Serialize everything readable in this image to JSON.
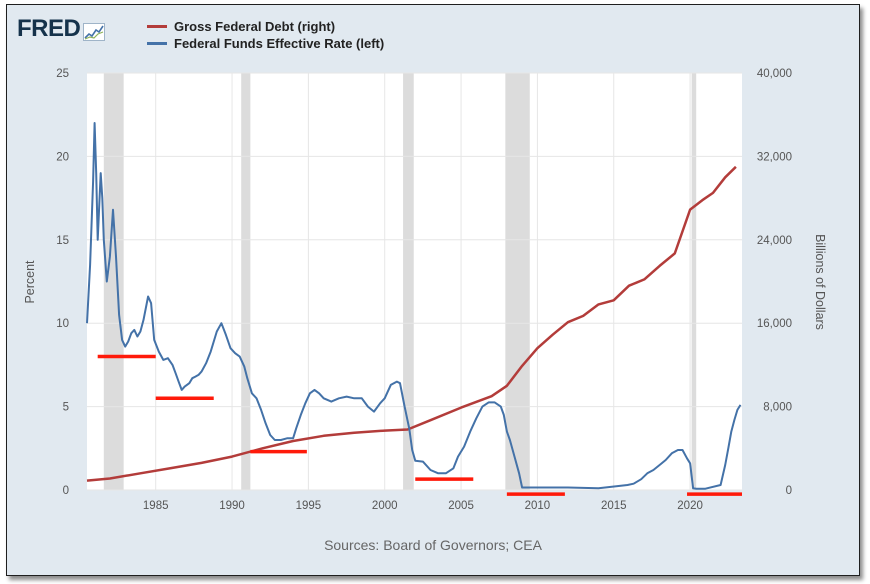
{
  "logo": {
    "text": "FRED",
    "icon": "trend-line-icon"
  },
  "colors": {
    "debt": "#b33c3a",
    "rate": "#4472a8",
    "marker": "#ff1a0a",
    "recession": "#dcdcdc"
  },
  "source": "Sources: Board of Governors; CEA",
  "chart_data": {
    "type": "line",
    "title": "",
    "xlabel": "",
    "ylabel_left": "Percent",
    "ylabel_right": "Billions of Dollars",
    "xlim": [
      1980.5,
      2023.4
    ],
    "ylim_left": [
      0,
      25
    ],
    "ylim_right": [
      0,
      40000
    ],
    "x_ticks": [
      1985,
      1990,
      1995,
      2000,
      2005,
      2010,
      2015,
      2020
    ],
    "y_ticks_left": [
      0,
      5,
      10,
      15,
      20,
      25
    ],
    "y_ticks_right": [
      0,
      8000,
      16000,
      24000,
      32000,
      40000
    ],
    "y_tick_labels_right": [
      "0",
      "8,000",
      "16,000",
      "24,000",
      "32,000",
      "40,000"
    ],
    "grid": true,
    "legend_position": "top-left",
    "recessions": [
      [
        1981.6,
        1982.9
      ],
      [
        1990.6,
        1991.2
      ],
      [
        2001.2,
        2001.9
      ],
      [
        2007.9,
        2009.5
      ],
      [
        2020.1,
        2020.4
      ]
    ],
    "series": [
      {
        "name": "Gross Federal Debt (right)",
        "axis": "right",
        "x": [
          1980.5,
          1982,
          1984,
          1986,
          1988,
          1990,
          1992,
          1994,
          1996,
          1998,
          2000,
          2001.5,
          2003,
          2005,
          2007,
          2008,
          2009,
          2010,
          2011,
          2012,
          2013,
          2014,
          2015,
          2016,
          2017,
          2018,
          2019,
          2020,
          2020.8,
          2021.5,
          2022.3,
          2023
        ],
        "values": [
          900,
          1100,
          1600,
          2100,
          2600,
          3200,
          4000,
          4700,
          5200,
          5500,
          5700,
          5800,
          6700,
          7900,
          9000,
          10000,
          11900,
          13600,
          14900,
          16100,
          16700,
          17800,
          18200,
          19600,
          20200,
          21500,
          22700,
          26900,
          27800,
          28500,
          30000,
          31000
        ]
      },
      {
        "name": "Federal Funds Effective Rate (left)",
        "axis": "left",
        "x": [
          1980.5,
          1980.7,
          1980.9,
          1981.0,
          1981.1,
          1981.2,
          1981.4,
          1981.5,
          1981.6,
          1981.8,
          1982.0,
          1982.2,
          1982.4,
          1982.6,
          1982.8,
          1983.0,
          1983.2,
          1983.4,
          1983.6,
          1983.8,
          1984.0,
          1984.2,
          1984.5,
          1984.7,
          1984.9,
          1985.2,
          1985.5,
          1985.8,
          1986.1,
          1986.3,
          1986.5,
          1986.7,
          1986.9,
          1987.2,
          1987.4,
          1987.6,
          1987.8,
          1988.0,
          1988.3,
          1988.6,
          1989.0,
          1989.3,
          1989.6,
          1989.9,
          1990.2,
          1990.5,
          1990.8,
          1991.0,
          1991.3,
          1991.6,
          1991.9,
          1992.2,
          1992.5,
          1992.8,
          1993.2,
          1993.6,
          1994.0,
          1994.2,
          1994.5,
          1994.8,
          1995.1,
          1995.4,
          1995.7,
          1996.0,
          1996.5,
          1997.0,
          1997.5,
          1998.0,
          1998.5,
          1998.9,
          1999.3,
          1999.7,
          2000.0,
          2000.4,
          2000.8,
          2001.0,
          2001.3,
          2001.6,
          2001.8,
          2002.0,
          2002.5,
          2003.0,
          2003.5,
          2004.0,
          2004.5,
          2004.8,
          2005.2,
          2005.6,
          2006.0,
          2006.4,
          2006.8,
          2007.2,
          2007.6,
          2007.8,
          2008.0,
          2008.2,
          2008.5,
          2008.8,
          2009.0,
          2010.0,
          2012.0,
          2014.0,
          2015.9,
          2016.3,
          2016.8,
          2017.2,
          2017.6,
          2018.0,
          2018.4,
          2018.8,
          2019.2,
          2019.5,
          2019.8,
          2020.0,
          2020.2,
          2020.4,
          2021.0,
          2022.0,
          2022.3,
          2022.5,
          2022.7,
          2022.9,
          2023.1,
          2023.3
        ],
        "values": [
          10.0,
          13.5,
          18.5,
          22.0,
          19.0,
          15.0,
          19.0,
          17.5,
          15.0,
          12.5,
          14.0,
          16.8,
          14.0,
          10.5,
          9.0,
          8.6,
          8.9,
          9.4,
          9.6,
          9.2,
          9.5,
          10.2,
          11.6,
          11.2,
          9.0,
          8.3,
          7.8,
          7.9,
          7.5,
          7.0,
          6.5,
          6.0,
          6.2,
          6.4,
          6.7,
          6.8,
          6.9,
          7.1,
          7.6,
          8.3,
          9.5,
          10.0,
          9.3,
          8.5,
          8.2,
          8.0,
          7.4,
          6.7,
          5.8,
          5.5,
          4.8,
          4.0,
          3.3,
          3.0,
          3.0,
          3.1,
          3.1,
          3.7,
          4.5,
          5.2,
          5.8,
          6.0,
          5.8,
          5.5,
          5.3,
          5.5,
          5.6,
          5.5,
          5.5,
          5.0,
          4.7,
          5.2,
          5.5,
          6.3,
          6.5,
          6.4,
          5.0,
          3.7,
          2.4,
          1.75,
          1.7,
          1.2,
          1.0,
          1.0,
          1.3,
          2.0,
          2.6,
          3.5,
          4.3,
          5.0,
          5.25,
          5.25,
          5.0,
          4.5,
          3.5,
          3.0,
          2.0,
          1.0,
          0.15,
          0.15,
          0.15,
          0.1,
          0.3,
          0.38,
          0.65,
          1.0,
          1.2,
          1.5,
          1.8,
          2.2,
          2.4,
          2.4,
          1.9,
          1.6,
          0.1,
          0.08,
          0.08,
          0.3,
          1.5,
          2.5,
          3.5,
          4.2,
          4.8,
          5.1
        ]
      }
    ],
    "markers": [
      {
        "x": [
          1981.2,
          1985.0
        ],
        "y": 8.0
      },
      {
        "x": [
          1985.0,
          1988.8
        ],
        "y": 5.5
      },
      {
        "x": [
          1991.2,
          1994.9
        ],
        "y": 2.3
      },
      {
        "x": [
          2002.0,
          2005.8
        ],
        "y": 0.65
      },
      {
        "x": [
          2008.0,
          2011.8
        ],
        "y": -0.25
      },
      {
        "x": [
          2019.8,
          2023.4
        ],
        "y": -0.25
      }
    ]
  }
}
